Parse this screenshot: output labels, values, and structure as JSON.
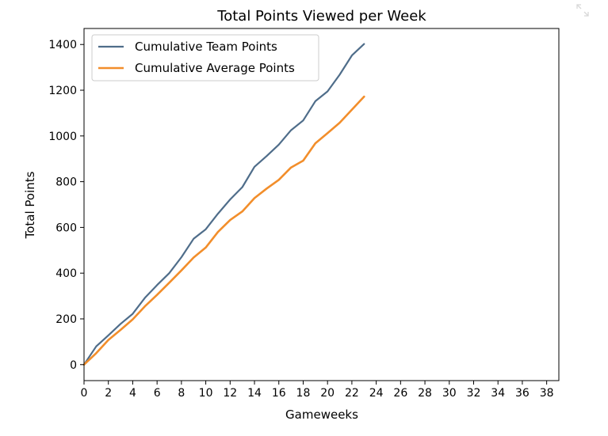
{
  "chart_data": {
    "type": "line",
    "title": "Total Points Viewed per Week",
    "xlabel": "Gameweeks",
    "ylabel": "Total Points",
    "xlim": [
      0,
      39
    ],
    "ylim": [
      -70,
      1470
    ],
    "xticks": [
      0,
      2,
      4,
      6,
      8,
      10,
      12,
      14,
      16,
      18,
      20,
      22,
      24,
      26,
      28,
      30,
      32,
      34,
      36,
      38
    ],
    "yticks": [
      0,
      200,
      400,
      600,
      800,
      1000,
      1200,
      1400
    ],
    "grid": false,
    "legend": "top-left",
    "x": [
      0,
      1,
      2,
      3,
      4,
      5,
      6,
      7,
      8,
      9,
      10,
      11,
      12,
      13,
      14,
      15,
      16,
      17,
      18,
      19,
      20,
      21,
      22,
      23
    ],
    "series": [
      {
        "name": "Cumulative Team Points",
        "color": "#4f6d8a",
        "values": [
          0,
          80,
          128,
          178,
          222,
          292,
          348,
          400,
          470,
          550,
          592,
          660,
          722,
          776,
          865,
          912,
          962,
          1025,
          1068,
          1152,
          1195,
          1268,
          1352,
          1402
        ]
      },
      {
        "name": "Cumulative Average Points",
        "color": "#f28e2b",
        "values": [
          0,
          50,
          108,
          152,
          198,
          255,
          305,
          358,
          412,
          468,
          512,
          580,
          632,
          670,
          728,
          770,
          808,
          862,
          892,
          968,
          1012,
          1058,
          1115,
          1172
        ]
      }
    ]
  },
  "ui": {
    "expand_icon": "expand-icon"
  }
}
